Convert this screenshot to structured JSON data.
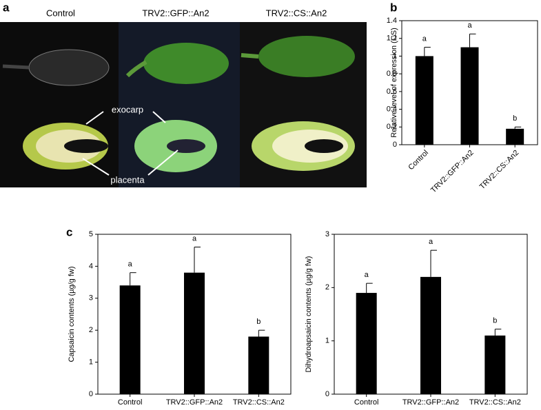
{
  "panel_labels": [
    "a",
    "b",
    "c"
  ],
  "photo": {
    "column_labels": [
      "Control",
      "TRV2::GFP::An2",
      "TRV2::CS::An2"
    ],
    "annotations": [
      "exocarp",
      "placenta"
    ]
  },
  "chart_data": [
    {
      "type": "bar",
      "ylabel": "Relative level of expression (CS)",
      "categories": [
        "Control",
        "TRV2::GFP::An2",
        "TRV2::CS::An2"
      ],
      "values": [
        1.0,
        1.1,
        0.18
      ],
      "errors": [
        0.1,
        0.15,
        0.02
      ],
      "letters": [
        "a",
        "a",
        "b"
      ],
      "color": "#000000",
      "ylim": [
        0,
        1.4
      ],
      "yticks": [
        0,
        0.2,
        0.4,
        0.6,
        0.8,
        1,
        1.2,
        1.4
      ]
    },
    {
      "type": "bar",
      "ylabel": "Capsaicin contents (µg/g fw)",
      "categories": [
        "Control",
        "TRV2::GFP::An2",
        "TRV2::CS::An2"
      ],
      "values": [
        3.4,
        3.8,
        1.8
      ],
      "errors": [
        0.4,
        0.8,
        0.2
      ],
      "letters": [
        "a",
        "a",
        "b"
      ],
      "color": "#000000",
      "ylim": [
        0,
        5
      ],
      "yticks": [
        0,
        1,
        2,
        3,
        4,
        5
      ]
    },
    {
      "type": "bar",
      "ylabel": "Dihydroapsaicin contents (µg/g fw)",
      "categories": [
        "Control",
        "TRV2::GFP::An2",
        "TRV2::CS::An2"
      ],
      "values": [
        1.9,
        2.2,
        1.1
      ],
      "errors": [
        0.18,
        0.5,
        0.12
      ],
      "letters": [
        "a",
        "a",
        "b"
      ],
      "color": "#000000",
      "ylim": [
        0,
        3
      ],
      "yticks": [
        0,
        1,
        2,
        3
      ]
    }
  ]
}
